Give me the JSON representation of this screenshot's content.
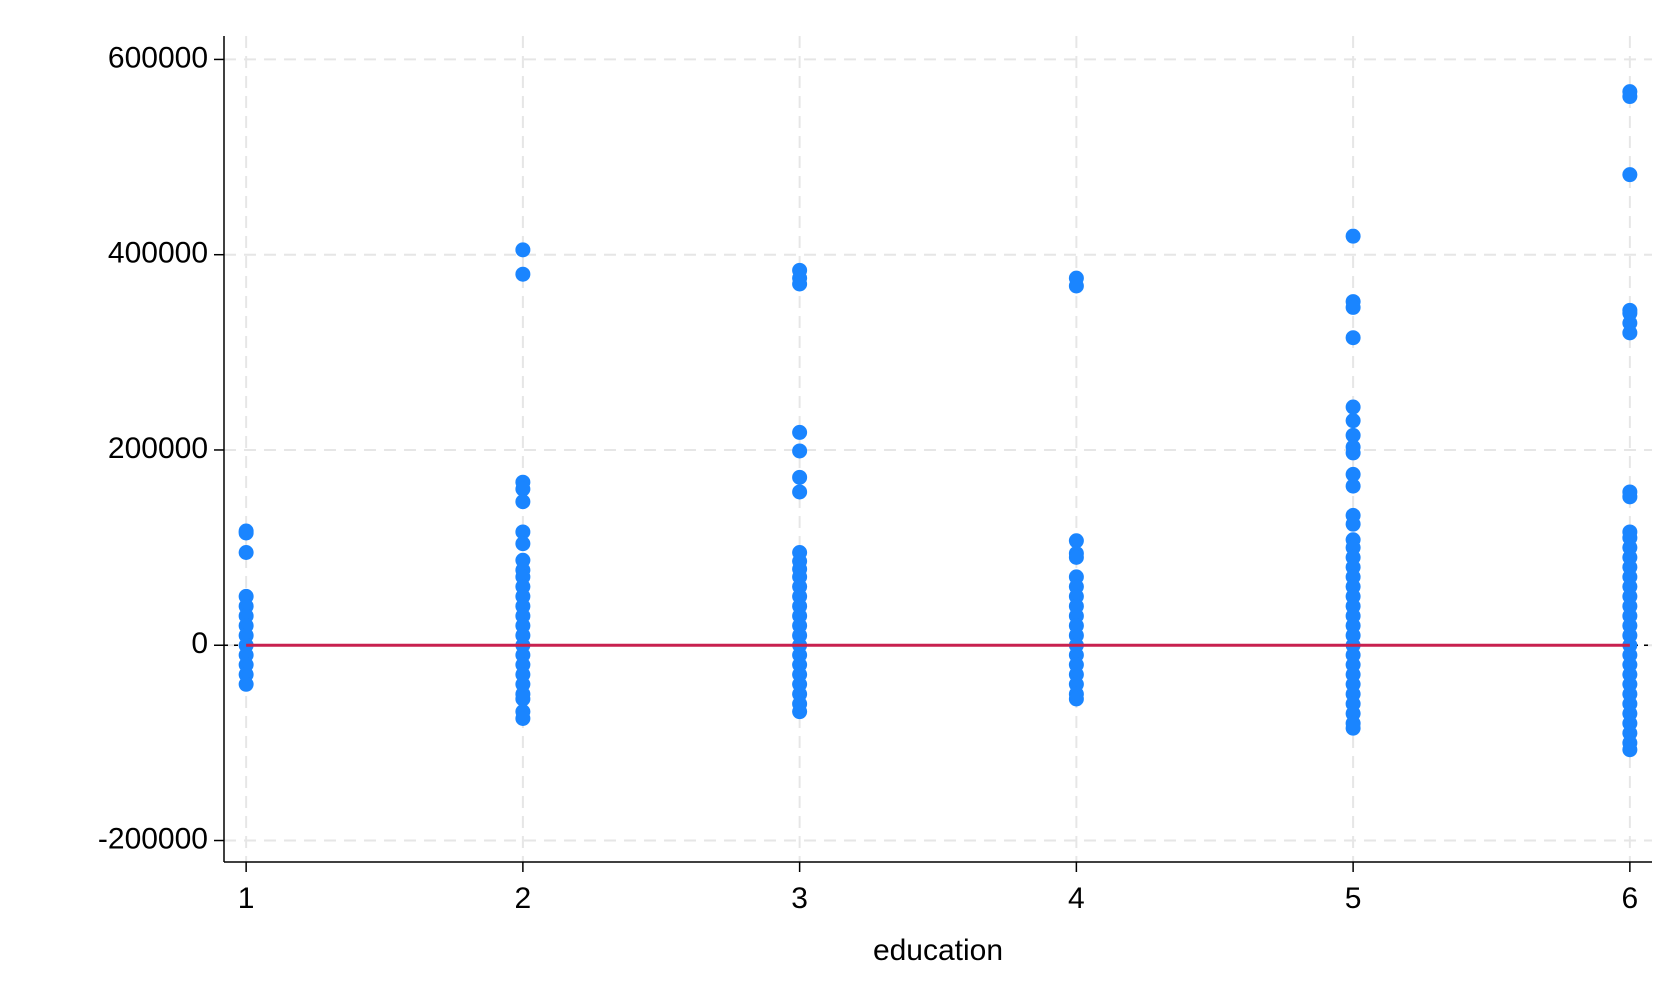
{
  "chart_data": {
    "type": "scatter",
    "x_label": "education",
    "xlim": [
      0.92,
      6.08
    ],
    "xticks": [
      1,
      2,
      3,
      4,
      5,
      6
    ],
    "ylim": [
      -222000,
      624000
    ],
    "yticks": [
      -200000,
      0,
      200000,
      400000,
      600000
    ],
    "grid": true,
    "hline": 0,
    "series": [
      {
        "type": "scatter",
        "color": "#1a85ff",
        "x": [
          1,
          1,
          1,
          1,
          1,
          1,
          1,
          1,
          1,
          1,
          1,
          1,
          1,
          2,
          2,
          2,
          2,
          2,
          2,
          2,
          2,
          2,
          2,
          2,
          2,
          2,
          2,
          2,
          2,
          2,
          2,
          2,
          2,
          2,
          2,
          2,
          2,
          2,
          3,
          3,
          3,
          3,
          3,
          3,
          3,
          3,
          3,
          3,
          3,
          3,
          3,
          3,
          3,
          3,
          3,
          3,
          3,
          3,
          3,
          3,
          3,
          3,
          3,
          4,
          4,
          4,
          4,
          4,
          4,
          4,
          4,
          4,
          4,
          4,
          4,
          4,
          4,
          4,
          4,
          4,
          4,
          4,
          5,
          5,
          5,
          5,
          5,
          5,
          5,
          5,
          5,
          5,
          5,
          5,
          5,
          5,
          5,
          5,
          5,
          5,
          5,
          5,
          5,
          5,
          5,
          5,
          5,
          5,
          5,
          5,
          5,
          5,
          5,
          5,
          5,
          5,
          6,
          6,
          6,
          6,
          6,
          6,
          6,
          6,
          6,
          6,
          6,
          6,
          6,
          6,
          6,
          6,
          6,
          6,
          6,
          6,
          6,
          6,
          6,
          6,
          6,
          6,
          6,
          6,
          6,
          6,
          6,
          6,
          6
        ],
        "values": [
          117000,
          115000,
          95000,
          50000,
          40000,
          30000,
          20000,
          10000,
          0,
          -10000,
          -20000,
          -30000,
          -40000,
          405000,
          380000,
          167000,
          160000,
          147000,
          116000,
          104000,
          87000,
          77000,
          70000,
          60000,
          50000,
          40000,
          30000,
          20000,
          10000,
          0,
          -10000,
          -20000,
          -30000,
          -40000,
          -50000,
          -55000,
          -68000,
          -75000,
          384000,
          376000,
          370000,
          218000,
          199000,
          172000,
          157000,
          95000,
          86000,
          78000,
          70000,
          60000,
          50000,
          40000,
          30000,
          20000,
          10000,
          0,
          -10000,
          -20000,
          -30000,
          -40000,
          -50000,
          -60000,
          -68000,
          376000,
          368000,
          107000,
          94000,
          90000,
          70000,
          60000,
          50000,
          40000,
          30000,
          20000,
          10000,
          0,
          -10000,
          -20000,
          -30000,
          -40000,
          -50000,
          -55000,
          419000,
          352000,
          346000,
          315000,
          244000,
          230000,
          215000,
          203000,
          197000,
          175000,
          163000,
          133000,
          124000,
          108000,
          100000,
          90000,
          80000,
          70000,
          60000,
          50000,
          40000,
          30000,
          20000,
          10000,
          0,
          -10000,
          -20000,
          -30000,
          -40000,
          -50000,
          -60000,
          -70000,
          -80000,
          -85000,
          567000,
          562000,
          482000,
          343000,
          340000,
          330000,
          320000,
          157000,
          152000,
          116000,
          110000,
          100000,
          90000,
          80000,
          70000,
          60000,
          50000,
          40000,
          30000,
          20000,
          10000,
          0,
          -10000,
          -20000,
          -30000,
          -40000,
          -50000,
          -60000,
          -70000,
          -80000,
          -90000,
          -100000,
          -107000
        ]
      },
      {
        "type": "line",
        "color": "#c8214f",
        "x": [
          1,
          6
        ],
        "values": [
          0,
          0
        ]
      }
    ]
  }
}
